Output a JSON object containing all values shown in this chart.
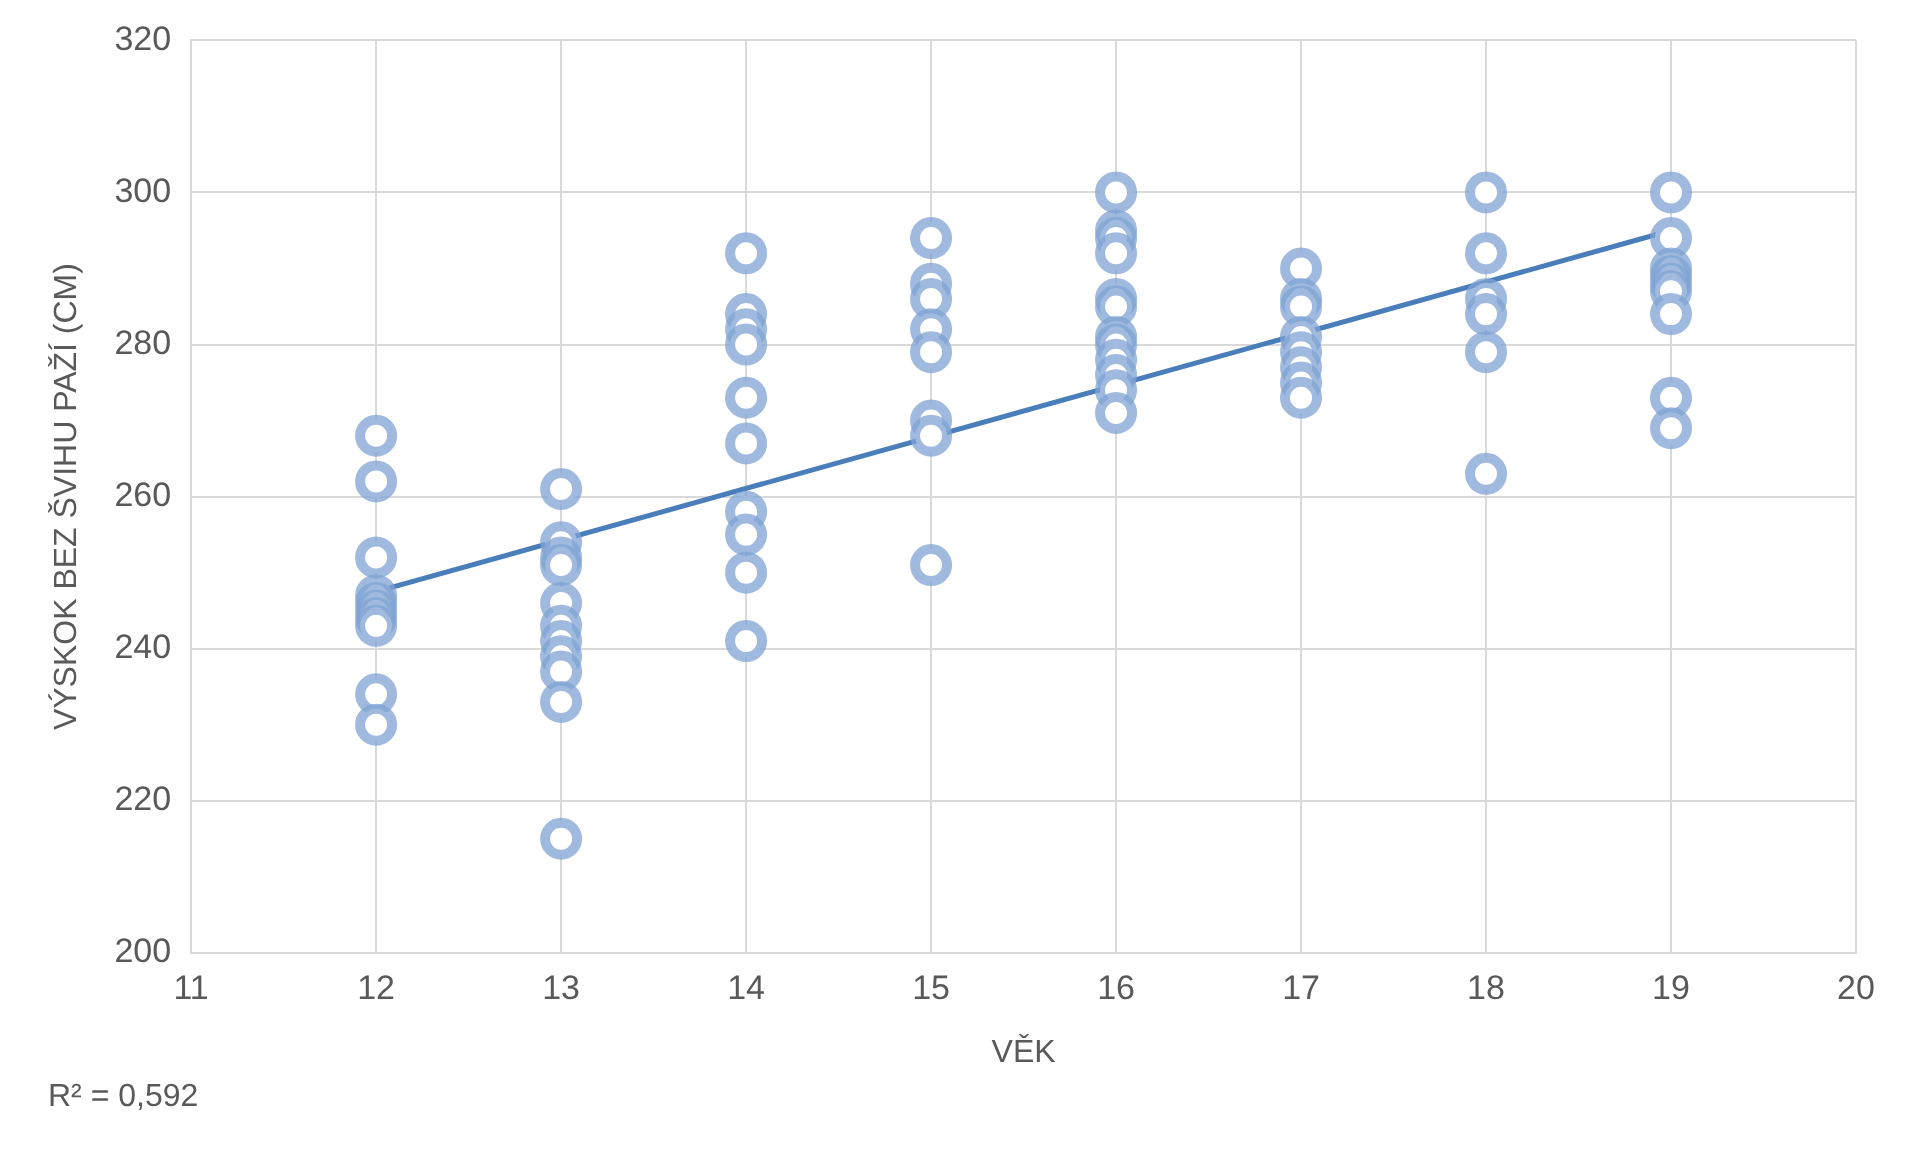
{
  "chart_data": {
    "type": "scatter",
    "xlabel": "VĚK",
    "ylabel": "VÝSKOK BEZ ŠVIHU PAŽÍ (CM)",
    "annotations": [
      "R² = 0,592"
    ],
    "xlim": [
      11,
      20
    ],
    "xticks": [
      11,
      12,
      13,
      14,
      15,
      16,
      17,
      18,
      19,
      20
    ],
    "ylim": [
      200,
      320
    ],
    "yticks": [
      200,
      220,
      240,
      260,
      280,
      300,
      320
    ],
    "grid": true,
    "legend": false,
    "marker": "circle",
    "series": [
      {
        "color": "#7fa3d3",
        "x": [
          12,
          12,
          12,
          12,
          12,
          12,
          12,
          12,
          12,
          12,
          13,
          13,
          13,
          13,
          13,
          13,
          13,
          13,
          13,
          13,
          13,
          14,
          14,
          14,
          14,
          14,
          14,
          14,
          14,
          14,
          14,
          15,
          15,
          15,
          15,
          15,
          15,
          15,
          15,
          16,
          16,
          16,
          16,
          16,
          16,
          16,
          16,
          16,
          16,
          16,
          16,
          17,
          17,
          17,
          17,
          17,
          17,
          17,
          17,
          18,
          18,
          18,
          18,
          18,
          18,
          19,
          19,
          19,
          19,
          19,
          19,
          19,
          19,
          19
        ],
        "values": [
          268,
          262,
          252,
          247,
          246,
          245,
          244,
          243,
          234,
          230,
          261,
          254,
          252,
          251,
          246,
          243,
          241,
          239,
          237,
          233,
          215,
          292,
          284,
          282,
          280,
          273,
          267,
          258,
          255,
          250,
          241,
          294,
          288,
          286,
          282,
          279,
          270,
          268,
          251,
          300,
          295,
          294,
          292,
          286,
          285,
          281,
          280,
          278,
          276,
          274,
          271,
          290,
          286,
          285,
          281,
          279,
          277,
          275,
          273,
          300,
          292,
          286,
          284,
          279,
          263,
          300,
          294,
          290,
          289,
          288,
          287,
          284,
          273,
          269
        ]
      },
      {
        "type": "line",
        "color": "#4a7ebb",
        "marker": "none",
        "line_style": "solid",
        "x": [
          12,
          19
        ],
        "values": [
          247.5,
          295
        ]
      }
    ]
  }
}
